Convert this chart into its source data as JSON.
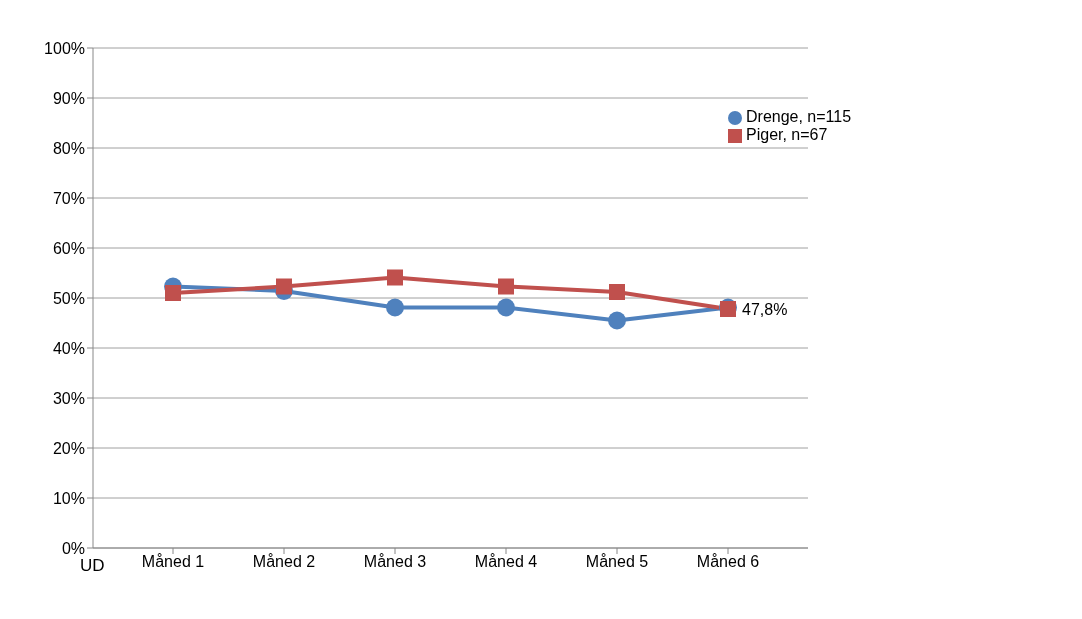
{
  "chart_data": {
    "type": "line",
    "categories": [
      "Måned 1",
      "Måned 2",
      "Måned 3",
      "Måned 4",
      "Måned 5",
      "Måned 6"
    ],
    "series": [
      {
        "name": "Drenge, n=115",
        "color": "#4f81bd",
        "marker": "circle",
        "values": [
          52.3,
          51.4,
          48.1,
          48.1,
          45.5,
          48.1
        ]
      },
      {
        "name": "Piger, n=67",
        "color": "#c0504d",
        "marker": "square",
        "values": [
          51.0,
          52.3,
          54.1,
          52.3,
          51.2,
          47.8
        ],
        "value_labels": [
          null,
          null,
          null,
          null,
          null,
          "47,8%"
        ]
      }
    ],
    "ylim": [
      0,
      100
    ],
    "yticks": [
      {
        "value": 0,
        "label": "0%"
      },
      {
        "value": 10,
        "label": "10%"
      },
      {
        "value": 20,
        "label": "20%"
      },
      {
        "value": 30,
        "label": "30%"
      },
      {
        "value": 40,
        "label": "40%"
      },
      {
        "value": 50,
        "label": "50%"
      },
      {
        "value": 60,
        "label": "60%"
      },
      {
        "value": 70,
        "label": "70%"
      },
      {
        "value": 80,
        "label": "80%"
      },
      {
        "value": 90,
        "label": "90%"
      },
      {
        "value": 100,
        "label": "100%"
      }
    ],
    "grid": "y",
    "legend": "top right",
    "line_style": "solid",
    "annotations": [
      "UD"
    ]
  }
}
